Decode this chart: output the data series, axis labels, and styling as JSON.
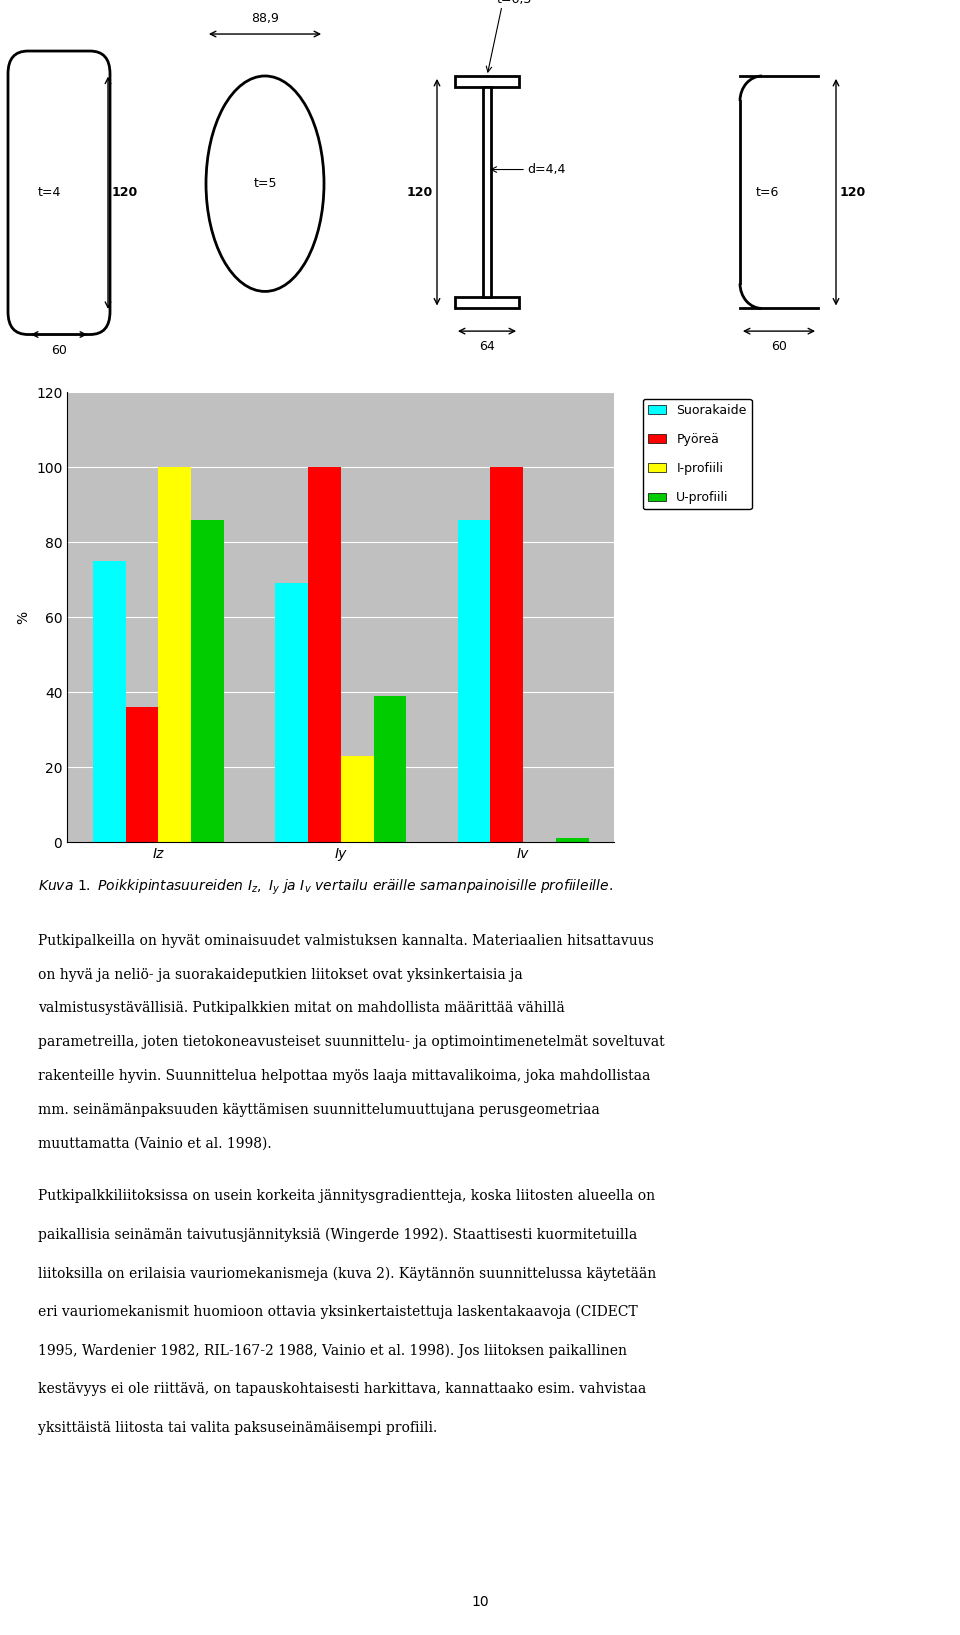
{
  "bar_categories": [
    "Iz",
    "Iy",
    "Iv"
  ],
  "bar_series": {
    "Suorakaide": [
      75,
      69,
      86
    ],
    "Pyöreä": [
      36,
      100,
      100
    ],
    "I-profiili": [
      100,
      23,
      0
    ],
    "U-profiili": [
      86,
      39,
      1
    ]
  },
  "bar_colors": {
    "Suorakaide": "#00FFFF",
    "Pyöreä": "#FF0000",
    "I-profiili": "#FFFF00",
    "U-profiili": "#00CC00"
  },
  "ylabel": "%",
  "ylim": [
    0,
    120
  ],
  "yticks": [
    0,
    20,
    40,
    60,
    80,
    100,
    120
  ],
  "chart_bg": "#C0C0C0",
  "figure_bg": "#FFFFFF",
  "caption": "Kuva 1. Poikkipintasuureiden $I_z$, $I_y$ ja $I_v$ vertailu eräille samanpainoisille profiileille.",
  "para1_bold": "Putkipalkeilla on hyvät ominaisuudet valmistuksen kannalta. Materiaalien hitsattavuus on hyvä ja neliö- ja suorakaideputkien liitokset ovat yksinkertaisia ja valmistusystävällisiä.",
  "para1_normal": " Putkipalkkien mitat on mahdollista määrittää vähillä parametreilla, joten tietokoneavusteiset suunnittelu- ja optimointimenetelmät soveltuvat rakenteille hyvin. Suunnittelua helpottaa myös laaja mittavalikoima, joka mahdollistaa mm. seinämänpaksuuden käyttämisen suunnittelumuuttujana perusgeometriaa muuttamatta (Vainio et al. 1998).",
  "para2": "Putkipalkkiliitoksissa on usein korkeita jännitysgradientteja, koska liitosten alueella on paikallisia seinämän taivutusjännityksiä (Wingerde 1992). Staattisesti kuormitetuilla liitoksilla on erilaisia vauriomekanismeja (kuva 2). Käytännön suunnittelussa käytetään eri vauriomekanismit huomioon ottavia yksinkertaistettuja laskentakaavoja (CIDECT 1995, Wardenier 1982, RIL-167-2 1988, Vainio et al. 1998). Jos liitoksen paikallinen kestävyys ei ole riittävä, on tapauskohtaisesti harkittava, kannattaako esim. vahvistaa yksittäistä liitosta tai valita paksuseinämäisempi profiili.",
  "page_number": "10"
}
